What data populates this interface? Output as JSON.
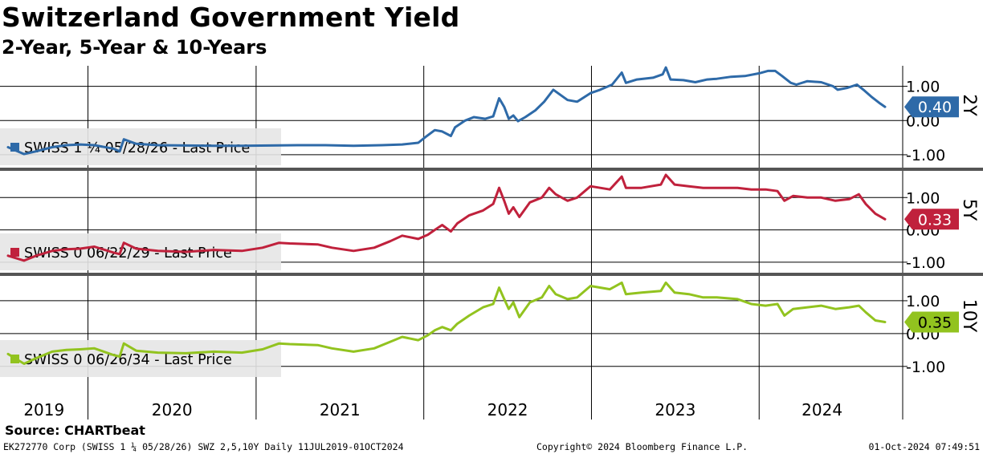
{
  "title": "Switzerland Government Yield",
  "subtitle": "2-Year, 5-Year & 10-Years",
  "source": "Source: CHARTbeat",
  "footer": {
    "left": "EK272770 Corp (SWISS 1 ¼ 05/28/26) SWZ 2,5,10Y  Daily 11JUL2019-01OCT2024",
    "middle": "Copyright© 2024 Bloomberg Finance L.P.",
    "right": "01-Oct-2024 07:49:51"
  },
  "colors": {
    "2Y": "#2e6aa8",
    "5Y": "#c0213c",
    "10Y": "#92c31f",
    "grid": "#000000",
    "legend_bg": "#e6e6e6"
  },
  "chart_data": [
    {
      "type": "line",
      "panel_label": "2Y",
      "legend": "SWISS 1 ¼ 05/28/26 - Last Price",
      "last_value": "0.40",
      "y_ticks": [
        1.0,
        0.0,
        -1.0
      ],
      "y_tick_labels": [
        "1.00",
        "0.00",
        "-1.00"
      ],
      "ylim": [
        -1.4,
        1.6
      ],
      "series": [
        {
          "name": "SWISS 1 ¼ 05/28/26",
          "points": [
            [
              "2019-07-11",
              -0.78
            ],
            [
              "2019-08-15",
              -0.98
            ],
            [
              "2019-09-10",
              -0.9
            ],
            [
              "2019-10-15",
              -0.78
            ],
            [
              "2019-11-15",
              -0.72
            ],
            [
              "2019-12-15",
              -0.7
            ],
            [
              "2020-01-15",
              -0.72
            ],
            [
              "2020-02-25",
              -0.82
            ],
            [
              "2020-03-10",
              -0.9
            ],
            [
              "2020-03-19",
              -0.55
            ],
            [
              "2020-04-15",
              -0.68
            ],
            [
              "2020-06-01",
              -0.72
            ],
            [
              "2020-08-01",
              -0.73
            ],
            [
              "2020-10-01",
              -0.74
            ],
            [
              "2020-12-01",
              -0.74
            ],
            [
              "2021-02-01",
              -0.73
            ],
            [
              "2021-04-01",
              -0.72
            ],
            [
              "2021-06-01",
              -0.72
            ],
            [
              "2021-08-01",
              -0.74
            ],
            [
              "2021-10-01",
              -0.72
            ],
            [
              "2021-11-15",
              -0.7
            ],
            [
              "2021-12-20",
              -0.65
            ],
            [
              "2022-01-05",
              -0.48
            ],
            [
              "2022-01-25",
              -0.28
            ],
            [
              "2022-02-10",
              -0.32
            ],
            [
              "2022-03-01",
              -0.45
            ],
            [
              "2022-03-10",
              -0.2
            ],
            [
              "2022-04-01",
              0.0
            ],
            [
              "2022-04-20",
              0.1
            ],
            [
              "2022-05-15",
              0.05
            ],
            [
              "2022-06-01",
              0.12
            ],
            [
              "2022-06-14",
              0.65
            ],
            [
              "2022-06-25",
              0.4
            ],
            [
              "2022-07-05",
              0.05
            ],
            [
              "2022-07-15",
              0.15
            ],
            [
              "2022-07-25",
              -0.02
            ],
            [
              "2022-08-10",
              0.1
            ],
            [
              "2022-09-01",
              0.3
            ],
            [
              "2022-09-20",
              0.55
            ],
            [
              "2022-10-10",
              0.9
            ],
            [
              "2022-10-20",
              0.8
            ],
            [
              "2022-11-10",
              0.6
            ],
            [
              "2022-12-01",
              0.55
            ],
            [
              "2022-12-30",
              0.8
            ],
            [
              "2023-01-20",
              0.9
            ],
            [
              "2023-02-15",
              1.05
            ],
            [
              "2023-03-08",
              1.4
            ],
            [
              "2023-03-17",
              1.1
            ],
            [
              "2023-04-10",
              1.2
            ],
            [
              "2023-05-15",
              1.25
            ],
            [
              "2023-06-05",
              1.35
            ],
            [
              "2023-06-12",
              1.55
            ],
            [
              "2023-06-22",
              1.2
            ],
            [
              "2023-07-20",
              1.18
            ],
            [
              "2023-08-15",
              1.12
            ],
            [
              "2023-09-10",
              1.2
            ],
            [
              "2023-10-01",
              1.22
            ],
            [
              "2023-11-01",
              1.28
            ],
            [
              "2023-12-01",
              1.3
            ],
            [
              "2024-01-01",
              1.38
            ],
            [
              "2024-01-20",
              1.45
            ],
            [
              "2024-02-05",
              1.45
            ],
            [
              "2024-02-20",
              1.3
            ],
            [
              "2024-03-10",
              1.1
            ],
            [
              "2024-03-22",
              1.05
            ],
            [
              "2024-04-15",
              1.15
            ],
            [
              "2024-05-15",
              1.12
            ],
            [
              "2024-06-10",
              1.0
            ],
            [
              "2024-06-20",
              0.9
            ],
            [
              "2024-07-10",
              0.95
            ],
            [
              "2024-08-01",
              1.05
            ],
            [
              "2024-08-15",
              0.9
            ],
            [
              "2024-09-01",
              0.7
            ],
            [
              "2024-09-20",
              0.5
            ],
            [
              "2024-10-01",
              0.4
            ]
          ]
        }
      ]
    },
    {
      "type": "line",
      "panel_label": "5Y",
      "legend": "SWISS 0 06/22/29 - Last Price",
      "last_value": "0.33",
      "y_ticks": [
        1.0,
        0.0,
        -1.0
      ],
      "y_tick_labels": [
        "1.00",
        "0.00",
        "-1.00"
      ],
      "ylim": [
        -1.35,
        1.85
      ],
      "series": [
        {
          "name": "SWISS 0 06/22/29",
          "points": [
            [
              "2019-07-11",
              -0.8
            ],
            [
              "2019-08-15",
              -0.95
            ],
            [
              "2019-09-10",
              -0.8
            ],
            [
              "2019-10-15",
              -0.65
            ],
            [
              "2019-11-15",
              -0.6
            ],
            [
              "2019-12-15",
              -0.58
            ],
            [
              "2020-01-15",
              -0.52
            ],
            [
              "2020-02-25",
              -0.7
            ],
            [
              "2020-03-10",
              -0.75
            ],
            [
              "2020-03-19",
              -0.4
            ],
            [
              "2020-04-15",
              -0.58
            ],
            [
              "2020-06-01",
              -0.65
            ],
            [
              "2020-08-01",
              -0.68
            ],
            [
              "2020-10-01",
              -0.62
            ],
            [
              "2020-12-01",
              -0.65
            ],
            [
              "2021-01-15",
              -0.55
            ],
            [
              "2021-02-20",
              -0.4
            ],
            [
              "2021-03-15",
              -0.42
            ],
            [
              "2021-05-15",
              -0.45
            ],
            [
              "2021-06-15",
              -0.55
            ],
            [
              "2021-08-01",
              -0.65
            ],
            [
              "2021-09-15",
              -0.55
            ],
            [
              "2021-10-20",
              -0.35
            ],
            [
              "2021-11-15",
              -0.18
            ],
            [
              "2021-12-20",
              -0.28
            ],
            [
              "2022-01-10",
              -0.15
            ],
            [
              "2022-01-25",
              0.0
            ],
            [
              "2022-02-10",
              0.15
            ],
            [
              "2022-03-01",
              -0.05
            ],
            [
              "2022-03-15",
              0.2
            ],
            [
              "2022-04-10",
              0.45
            ],
            [
              "2022-05-10",
              0.6
            ],
            [
              "2022-06-01",
              0.8
            ],
            [
              "2022-06-14",
              1.3
            ],
            [
              "2022-06-25",
              0.9
            ],
            [
              "2022-07-05",
              0.5
            ],
            [
              "2022-07-15",
              0.7
            ],
            [
              "2022-07-28",
              0.4
            ],
            [
              "2022-08-20",
              0.85
            ],
            [
              "2022-09-15",
              1.0
            ],
            [
              "2022-10-01",
              1.3
            ],
            [
              "2022-10-15",
              1.1
            ],
            [
              "2022-11-10",
              0.9
            ],
            [
              "2022-12-01",
              1.0
            ],
            [
              "2022-12-30",
              1.35
            ],
            [
              "2023-02-10",
              1.25
            ],
            [
              "2023-03-08",
              1.65
            ],
            [
              "2023-03-17",
              1.3
            ],
            [
              "2023-04-20",
              1.3
            ],
            [
              "2023-06-01",
              1.4
            ],
            [
              "2023-06-12",
              1.7
            ],
            [
              "2023-07-01",
              1.4
            ],
            [
              "2023-08-01",
              1.35
            ],
            [
              "2023-09-01",
              1.3
            ],
            [
              "2023-10-01",
              1.3
            ],
            [
              "2023-11-15",
              1.3
            ],
            [
              "2023-12-15",
              1.25
            ],
            [
              "2024-01-15",
              1.25
            ],
            [
              "2024-02-10",
              1.2
            ],
            [
              "2024-02-25",
              0.9
            ],
            [
              "2024-03-15",
              1.05
            ],
            [
              "2024-04-15",
              1.0
            ],
            [
              "2024-05-15",
              1.0
            ],
            [
              "2024-06-15",
              0.9
            ],
            [
              "2024-07-15",
              0.95
            ],
            [
              "2024-08-05",
              1.1
            ],
            [
              "2024-08-20",
              0.8
            ],
            [
              "2024-09-10",
              0.5
            ],
            [
              "2024-10-01",
              0.33
            ]
          ]
        }
      ]
    },
    {
      "type": "line",
      "panel_label": "10Y",
      "legend": "SWISS 0 06/26/34 - Last Price",
      "last_value": "0.35",
      "y_ticks": [
        1.0,
        0.0,
        -1.0
      ],
      "y_tick_labels": [
        "1.00",
        "0.00",
        "-1.00"
      ],
      "ylim": [
        -1.42,
        1.78
      ],
      "series": [
        {
          "name": "SWISS 0 06/26/34",
          "points": [
            [
              "2019-07-11",
              -0.62
            ],
            [
              "2019-08-15",
              -0.92
            ],
            [
              "2019-09-10",
              -0.75
            ],
            [
              "2019-10-15",
              -0.55
            ],
            [
              "2019-11-15",
              -0.5
            ],
            [
              "2019-12-15",
              -0.48
            ],
            [
              "2020-01-15",
              -0.45
            ],
            [
              "2020-02-25",
              -0.65
            ],
            [
              "2020-03-10",
              -0.7
            ],
            [
              "2020-03-19",
              -0.3
            ],
            [
              "2020-04-15",
              -0.52
            ],
            [
              "2020-06-01",
              -0.58
            ],
            [
              "2020-08-01",
              -0.6
            ],
            [
              "2020-10-01",
              -0.55
            ],
            [
              "2020-12-01",
              -0.58
            ],
            [
              "2021-01-15",
              -0.48
            ],
            [
              "2021-02-20",
              -0.3
            ],
            [
              "2021-03-15",
              -0.32
            ],
            [
              "2021-05-15",
              -0.35
            ],
            [
              "2021-06-15",
              -0.45
            ],
            [
              "2021-08-01",
              -0.55
            ],
            [
              "2021-09-15",
              -0.45
            ],
            [
              "2021-10-20",
              -0.25
            ],
            [
              "2021-11-15",
              -0.1
            ],
            [
              "2021-12-20",
              -0.2
            ],
            [
              "2022-01-10",
              -0.05
            ],
            [
              "2022-01-25",
              0.1
            ],
            [
              "2022-02-10",
              0.2
            ],
            [
              "2022-03-01",
              0.1
            ],
            [
              "2022-03-15",
              0.3
            ],
            [
              "2022-04-10",
              0.55
            ],
            [
              "2022-05-10",
              0.8
            ],
            [
              "2022-06-01",
              0.9
            ],
            [
              "2022-06-14",
              1.4
            ],
            [
              "2022-06-25",
              1.05
            ],
            [
              "2022-07-05",
              0.75
            ],
            [
              "2022-07-15",
              0.95
            ],
            [
              "2022-07-28",
              0.5
            ],
            [
              "2022-08-20",
              0.95
            ],
            [
              "2022-09-15",
              1.1
            ],
            [
              "2022-10-01",
              1.45
            ],
            [
              "2022-10-15",
              1.2
            ],
            [
              "2022-11-10",
              1.05
            ],
            [
              "2022-12-01",
              1.1
            ],
            [
              "2022-12-30",
              1.45
            ],
            [
              "2023-02-10",
              1.35
            ],
            [
              "2023-03-08",
              1.55
            ],
            [
              "2023-03-17",
              1.2
            ],
            [
              "2023-04-20",
              1.25
            ],
            [
              "2023-06-01",
              1.3
            ],
            [
              "2023-06-12",
              1.55
            ],
            [
              "2023-07-01",
              1.25
            ],
            [
              "2023-08-01",
              1.2
            ],
            [
              "2023-09-01",
              1.1
            ],
            [
              "2023-10-01",
              1.1
            ],
            [
              "2023-11-15",
              1.05
            ],
            [
              "2023-12-15",
              0.9
            ],
            [
              "2024-01-15",
              0.85
            ],
            [
              "2024-02-10",
              0.9
            ],
            [
              "2024-02-25",
              0.55
            ],
            [
              "2024-03-15",
              0.75
            ],
            [
              "2024-04-15",
              0.8
            ],
            [
              "2024-05-15",
              0.85
            ],
            [
              "2024-06-15",
              0.75
            ],
            [
              "2024-07-15",
              0.8
            ],
            [
              "2024-08-05",
              0.85
            ],
            [
              "2024-08-20",
              0.65
            ],
            [
              "2024-09-10",
              0.4
            ],
            [
              "2024-10-01",
              0.35
            ]
          ]
        }
      ]
    }
  ],
  "x_axis": {
    "labels": [
      "2019",
      "2020",
      "2021",
      "2022",
      "2023",
      "2024"
    ],
    "year_starts": [
      "2020-01-01",
      "2021-01-01",
      "2022-01-01",
      "2023-01-01",
      "2024-01-01"
    ],
    "range": [
      "2019-07-11",
      "2024-10-01"
    ]
  }
}
